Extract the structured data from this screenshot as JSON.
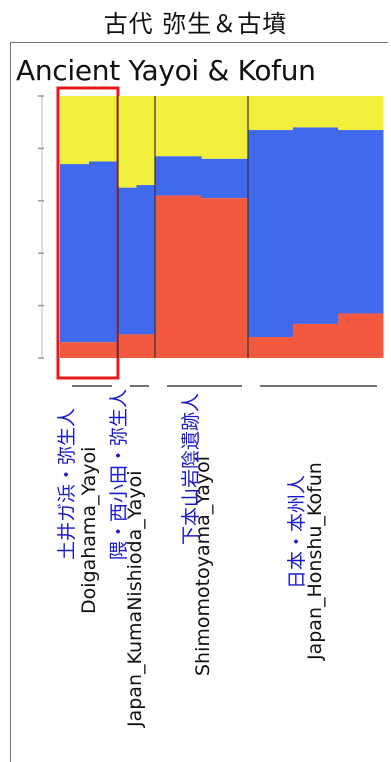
{
  "header": {
    "title": "古代 弥生＆古墳"
  },
  "chart_data": {
    "type": "bar",
    "stacked": true,
    "normalized": true,
    "title": "Ancient Yayoi & Kofun",
    "ylim": [
      0,
      1
    ],
    "colors": {
      "red": "#f2593f",
      "blue": "#4169ee",
      "yellow": "#efef3c",
      "highlight": "#e8171b"
    },
    "groups": [
      {
        "name": "Doigahama_Yayoi",
        "jp_label": "土井ガ浜・弥生人",
        "highlighted": true,
        "samples": [
          {
            "red": 0.06,
            "blue": 0.68
          },
          {
            "red": 0.06,
            "blue": 0.69
          }
        ]
      },
      {
        "name": "Japan_KumaNishioda_Yayoi",
        "jp_label": "隈・西小田・弥生人",
        "highlighted": false,
        "samples": [
          {
            "red": 0.09,
            "blue": 0.56
          },
          {
            "red": 0.09,
            "blue": 0.57
          }
        ]
      },
      {
        "name": "Shimomotoyama_Yayoi",
        "jp_label": "下本山岩陰遺跡人",
        "highlighted": false,
        "samples": [
          {
            "red": 0.62,
            "blue": 0.15
          },
          {
            "red": 0.61,
            "blue": 0.15
          }
        ]
      },
      {
        "name": "Japan_Honshu_Kofun",
        "jp_label": "日本・本州人",
        "highlighted": false,
        "samples": [
          {
            "red": 0.08,
            "blue": 0.79
          },
          {
            "red": 0.13,
            "blue": 0.75
          },
          {
            "red": 0.17,
            "blue": 0.7
          }
        ]
      }
    ]
  }
}
